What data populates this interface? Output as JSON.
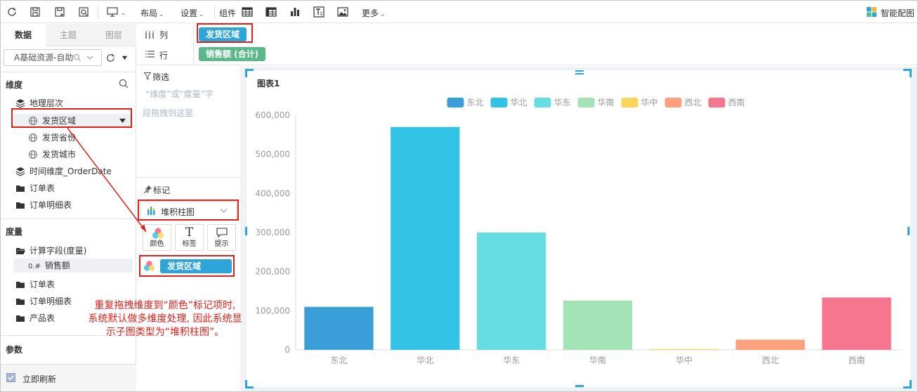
{
  "toolbar": {
    "layout_label": "布局",
    "settings_label": "设置",
    "component_label": "组件",
    "more_label": "更多",
    "smart_chart_label": "智能配图"
  },
  "left_panel": {
    "tabs": [
      {
        "label": "数据",
        "active": true
      },
      {
        "label": "主题",
        "active": false
      },
      {
        "label": "图层",
        "active": false
      }
    ],
    "datasource": "A基础资源-自助",
    "dimension_title": "维度",
    "dimensions": [
      {
        "label": "地理层次",
        "icon": "layers-icon"
      },
      {
        "label": "发货区域",
        "icon": "globe-icon"
      },
      {
        "label": "发货省份",
        "icon": "globe-icon"
      },
      {
        "label": "发货城市",
        "icon": "globe-icon"
      },
      {
        "label": "时间维度_OrderDate",
        "icon": "layers-icon"
      },
      {
        "label": "订单表",
        "icon": "folder-icon"
      },
      {
        "label": "订单明细表",
        "icon": "folder-icon"
      }
    ],
    "measure_title": "度量",
    "measures": [
      {
        "label": "计算字段(度量)",
        "icon": "folder-open-icon"
      },
      {
        "label": "销售额",
        "icon": "number-icon",
        "prefix": "0.#"
      },
      {
        "label": "订单表",
        "icon": "folder-icon"
      },
      {
        "label": "订单明细表",
        "icon": "folder-icon"
      },
      {
        "label": "产品表",
        "icon": "folder-icon"
      }
    ],
    "param_title": "参数",
    "refresh_label": "立即刷新"
  },
  "shelves": {
    "column_label": "列",
    "column_pill": "发货区域",
    "row_label": "行",
    "row_pill": "销售额 (合计)"
  },
  "filter": {
    "title": "筛选",
    "hint_line1": "“维度”或“度量”字",
    "hint_line2": "段拖拽到这里"
  },
  "marks": {
    "title": "标记",
    "chart_type": "堆积柱图",
    "buttons": [
      {
        "label": "颜色",
        "icon": "color-icon"
      },
      {
        "label": "标签",
        "icon": "text-icon"
      },
      {
        "label": "提示",
        "icon": "tooltip-icon"
      }
    ],
    "color_field": "发货区域"
  },
  "annotation": {
    "line1": "重复拖拽维度到“颜色”标记项时,",
    "line2": "系统默认做多维度处理, 因此系统显",
    "line3": "示子图类型为“堆积柱图”。"
  },
  "colors": {
    "accent": "#2ea5d8",
    "row_pill": "#5bb88a",
    "annotation": "#e0201b"
  },
  "chart_data": {
    "type": "bar",
    "title": "图表1",
    "categories": [
      "东北",
      "华北",
      "华东",
      "华南",
      "华中",
      "西北",
      "西南"
    ],
    "series": [
      {
        "name": "东北",
        "values": [
          110000,
          0,
          0,
          0,
          0,
          0,
          0
        ],
        "color": "#3a9fd8"
      },
      {
        "name": "华北",
        "values": [
          0,
          570000,
          0,
          0,
          0,
          0,
          0
        ],
        "color": "#33c3e6"
      },
      {
        "name": "华东",
        "values": [
          0,
          0,
          300000,
          0,
          0,
          0,
          0
        ],
        "color": "#66dde3"
      },
      {
        "name": "华南",
        "values": [
          0,
          0,
          0,
          126000,
          0,
          0,
          0
        ],
        "color": "#a3e4b6"
      },
      {
        "name": "华中",
        "values": [
          0,
          0,
          0,
          0,
          2000,
          0,
          0
        ],
        "color": "#fbd45c"
      },
      {
        "name": "西北",
        "values": [
          0,
          0,
          0,
          0,
          0,
          26000,
          0
        ],
        "color": "#fca07e"
      },
      {
        "name": "西南",
        "values": [
          0,
          0,
          0,
          0,
          0,
          0,
          134000
        ],
        "color": "#f6758f"
      }
    ],
    "y_ticks": [
      "0",
      "100,000",
      "200,000",
      "300,000",
      "400,000",
      "500,000",
      "600,000"
    ],
    "ylim": [
      0,
      600000
    ],
    "stacked": true,
    "legend_position": "top",
    "grid": false
  }
}
